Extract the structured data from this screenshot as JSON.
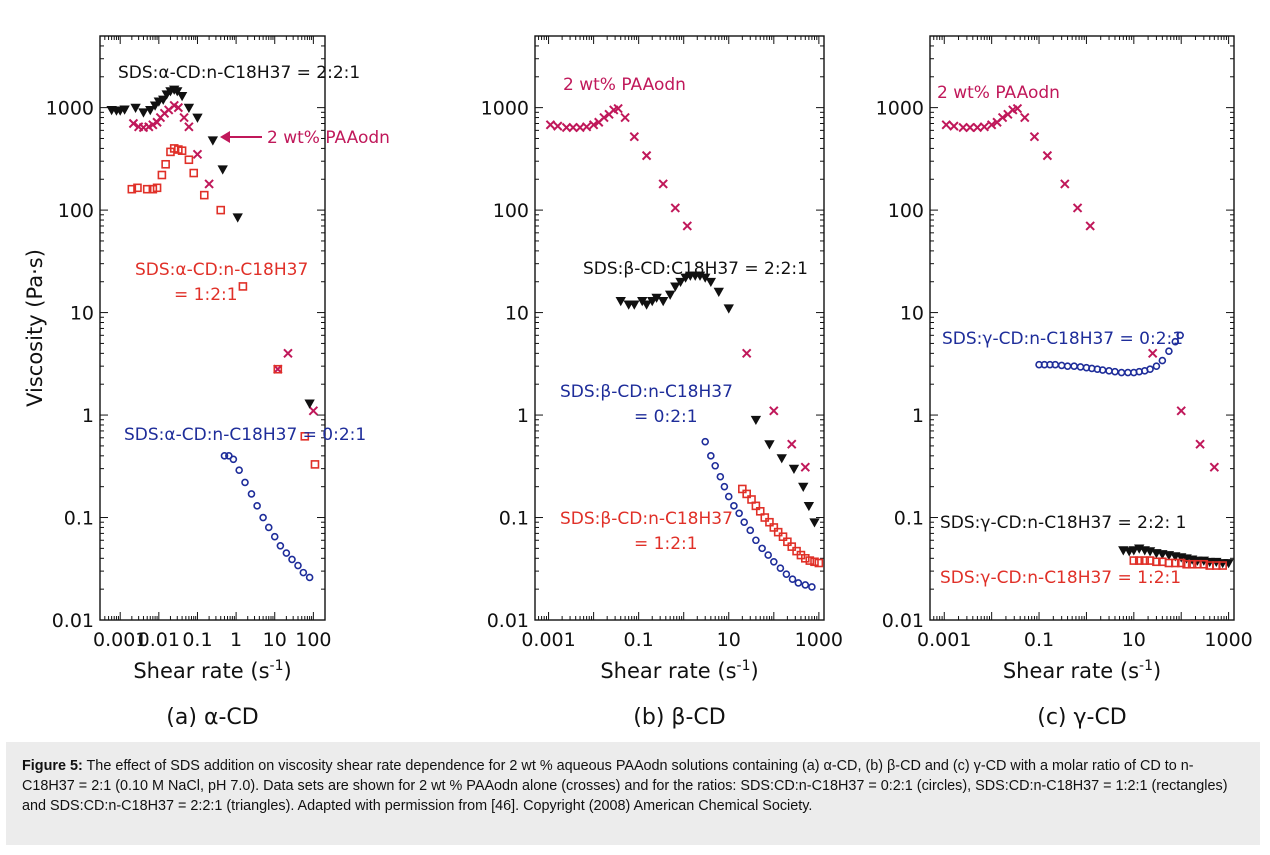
{
  "figure": {
    "y_axis_label": "Viscosity (Pa·s)",
    "x_axis_label": "Shear rate  (s",
    "x_axis_label_sup": "-1",
    "x_axis_label_end": ")"
  },
  "colors": {
    "paaodn": "#c0185a",
    "ratio_121": "#e03028",
    "ratio_021": "#1e2d9a",
    "ratio_221": "#111111",
    "axis": "#111111"
  },
  "chart_data": [
    {
      "type": "scatter",
      "panel_label": "(a) α-CD",
      "xlim": [
        0.0003,
        200
      ],
      "ylim": [
        0.01,
        5000
      ],
      "x_scale": "log",
      "y_scale": "log",
      "x_ticks": [
        "0.001",
        "0.01",
        "0.1",
        "1",
        "10",
        "100"
      ],
      "y_ticks": [
        "0.01",
        "0.1",
        "1",
        "10",
        "100",
        "1000"
      ],
      "annotations": [
        {
          "text": "SDS:α-CD:n-C18H37 = 2:2:1",
          "color": "#111111"
        },
        {
          "text": "2 wt% PAAodn",
          "color": "#c0185a"
        },
        {
          "text": "SDS:α-CD:n-C18H37",
          "color": "#e03028"
        },
        {
          "text": "= 1:2:1",
          "color": "#e03028"
        },
        {
          "text": "SDS:α-CD:n-C18H37 = 0:2:1",
          "color": "#1e2d9a"
        }
      ],
      "series": [
        {
          "marker": "cross",
          "color": "#c0185a",
          "x": [
            0.0022,
            0.003,
            0.004,
            0.0055,
            0.007,
            0.009,
            0.011,
            0.014,
            0.018,
            0.025,
            0.032,
            0.045,
            0.06,
            0.1,
            0.2,
            12,
            22,
            100
          ],
          "y": [
            700,
            650,
            640,
            650,
            680,
            720,
            800,
            880,
            950,
            1050,
            1000,
            800,
            650,
            350,
            180,
            2.8,
            4.0,
            1.1
          ]
        },
        {
          "marker": "square",
          "color": "#e03028",
          "x": [
            0.002,
            0.0028,
            0.005,
            0.007,
            0.009,
            0.012,
            0.015,
            0.02,
            0.025,
            0.032,
            0.04,
            0.06,
            0.08,
            0.15,
            0.4,
            1.5,
            12,
            60,
            110
          ],
          "y": [
            160,
            165,
            160,
            160,
            165,
            220,
            280,
            370,
            400,
            390,
            380,
            310,
            230,
            140,
            100,
            18,
            2.8,
            0.62,
            0.33
          ]
        },
        {
          "marker": "triangle",
          "color": "#111111",
          "x": [
            0.0006,
            0.0008,
            0.001,
            0.0013,
            0.0025,
            0.004,
            0.006,
            0.008,
            0.01,
            0.013,
            0.016,
            0.02,
            0.025,
            0.03,
            0.04,
            0.06,
            0.1,
            0.25,
            0.45,
            1.1,
            80
          ],
          "y": [
            950,
            940,
            940,
            960,
            1000,
            900,
            950,
            1050,
            1150,
            1200,
            1350,
            1450,
            1500,
            1450,
            1300,
            1000,
            800,
            480,
            250,
            85,
            1.3
          ]
        },
        {
          "marker": "circle",
          "color": "#1e2d9a",
          "x": [
            0.5,
            0.65,
            0.85,
            1.2,
            1.7,
            2.5,
            3.5,
            5,
            7,
            10,
            14,
            20,
            28,
            40,
            55,
            80
          ],
          "y": [
            0.4,
            0.4,
            0.37,
            0.29,
            0.22,
            0.17,
            0.13,
            0.1,
            0.08,
            0.065,
            0.053,
            0.045,
            0.039,
            0.034,
            0.029,
            0.026
          ]
        }
      ]
    },
    {
      "type": "scatter",
      "panel_label": "(b) β-CD",
      "xlim": [
        0.0005,
        1300
      ],
      "ylim": [
        0.01,
        5000
      ],
      "x_scale": "log",
      "y_scale": "log",
      "x_ticks": [
        "0.001",
        "0.1",
        "10",
        "1000"
      ],
      "y_ticks": [
        "0.01",
        "0.1",
        "1",
        "10",
        "100",
        "1000"
      ],
      "annotations": [
        {
          "text": "2 wt% PAAodn",
          "color": "#c0185a"
        },
        {
          "text": "SDS:β-CD:C18H37 = 2:2:1",
          "color": "#111111"
        },
        {
          "text": "SDS:β-CD:n-C18H37",
          "color": "#1e2d9a"
        },
        {
          "text": "= 0:2:1",
          "color": "#1e2d9a"
        },
        {
          "text": "SDS:β-CD:n-C18H37",
          "color": "#e03028"
        },
        {
          "text": "= 1:2:1",
          "color": "#e03028"
        }
      ],
      "series": [
        {
          "marker": "cross",
          "color": "#c0185a",
          "x": [
            0.0011,
            0.0016,
            0.0025,
            0.0035,
            0.005,
            0.007,
            0.01,
            0.013,
            0.017,
            0.022,
            0.028,
            0.035,
            0.05,
            0.08,
            0.15,
            0.35,
            0.65,
            1.2,
            25,
            100,
            250,
            500
          ],
          "y": [
            680,
            660,
            640,
            640,
            640,
            650,
            680,
            720,
            800,
            860,
            950,
            980,
            800,
            520,
            340,
            180,
            105,
            70,
            4.0,
            1.1,
            0.52,
            0.31
          ]
        },
        {
          "marker": "triangle",
          "color": "#111111",
          "x": [
            0.04,
            0.06,
            0.08,
            0.12,
            0.15,
            0.2,
            0.25,
            0.35,
            0.5,
            0.65,
            0.85,
            1.1,
            1.4,
            1.8,
            2.3,
            3,
            4,
            6,
            10,
            40,
            80,
            150,
            280,
            450,
            600,
            800
          ],
          "y": [
            13,
            12,
            12,
            13,
            12,
            13,
            14,
            13,
            15,
            18,
            20,
            22,
            23,
            23,
            23,
            22,
            20,
            16,
            11,
            0.9,
            0.52,
            0.38,
            0.3,
            0.2,
            0.13,
            0.09
          ]
        },
        {
          "marker": "circle",
          "color": "#1e2d9a",
          "x": [
            3,
            4,
            5,
            6.5,
            8,
            10,
            13,
            17,
            22,
            30,
            40,
            55,
            75,
            100,
            140,
            190,
            260,
            350,
            500,
            700
          ],
          "y": [
            0.55,
            0.4,
            0.32,
            0.25,
            0.2,
            0.16,
            0.13,
            0.11,
            0.09,
            0.075,
            0.06,
            0.05,
            0.043,
            0.037,
            0.032,
            0.028,
            0.025,
            0.023,
            0.022,
            0.021
          ]
        },
        {
          "marker": "square",
          "color": "#e03028",
          "x": [
            20,
            25,
            32,
            40,
            50,
            63,
            80,
            100,
            125,
            160,
            200,
            250,
            320,
            400,
            500,
            630,
            800,
            1000
          ],
          "y": [
            0.19,
            0.17,
            0.15,
            0.13,
            0.115,
            0.1,
            0.09,
            0.08,
            0.072,
            0.065,
            0.058,
            0.052,
            0.047,
            0.043,
            0.04,
            0.038,
            0.037,
            0.036
          ]
        }
      ]
    },
    {
      "type": "scatter",
      "panel_label": "(c) γ-CD",
      "xlim": [
        0.0005,
        1300
      ],
      "ylim": [
        0.01,
        5000
      ],
      "x_scale": "log",
      "y_scale": "log",
      "x_ticks": [
        "0.001",
        "0.1",
        "10",
        "1000"
      ],
      "y_ticks": [
        "0.01",
        "0.1",
        "1",
        "10",
        "100",
        "1000"
      ],
      "annotations": [
        {
          "text": "2 wt% PAAodn",
          "color": "#c0185a"
        },
        {
          "text": "SDS:γ-CD:n-C18H37 = 0:2:1",
          "color": "#1e2d9a"
        },
        {
          "text": "SDS:γ-CD:n-C18H37 = 2:2: 1",
          "color": "#111111"
        },
        {
          "text": "SDS:γ-CD:n-C18H37 = 1:2:1",
          "color": "#e03028"
        }
      ],
      "series": [
        {
          "marker": "cross",
          "color": "#c0185a",
          "x": [
            0.0011,
            0.0016,
            0.0025,
            0.0035,
            0.005,
            0.007,
            0.01,
            0.013,
            0.017,
            0.022,
            0.028,
            0.035,
            0.05,
            0.08,
            0.15,
            0.35,
            0.65,
            1.2,
            25,
            100,
            250,
            500
          ],
          "y": [
            680,
            660,
            640,
            640,
            640,
            650,
            680,
            720,
            800,
            860,
            950,
            980,
            800,
            520,
            340,
            180,
            105,
            70,
            4.0,
            1.1,
            0.52,
            0.31
          ]
        },
        {
          "marker": "circle",
          "color": "#1e2d9a",
          "x": [
            0.1,
            0.13,
            0.17,
            0.22,
            0.3,
            0.4,
            0.55,
            0.75,
            1,
            1.3,
            1.7,
            2.2,
            3,
            4,
            5.5,
            7.5,
            10,
            13,
            17,
            22,
            30,
            40,
            55,
            75,
            95
          ],
          "y": [
            3.1,
            3.1,
            3.1,
            3.1,
            3.05,
            3.0,
            3.0,
            2.95,
            2.9,
            2.85,
            2.8,
            2.75,
            2.7,
            2.65,
            2.6,
            2.6,
            2.6,
            2.65,
            2.7,
            2.8,
            3.0,
            3.4,
            4.2,
            5.2,
            6.0
          ]
        },
        {
          "marker": "triangle",
          "color": "#111111",
          "x": [
            6,
            8,
            10,
            13,
            17,
            22,
            30,
            40,
            55,
            75,
            100,
            130,
            170,
            220,
            300,
            400,
            550,
            750,
            1000
          ],
          "y": [
            0.048,
            0.047,
            0.048,
            0.05,
            0.048,
            0.047,
            0.045,
            0.044,
            0.043,
            0.042,
            0.041,
            0.04,
            0.039,
            0.038,
            0.038,
            0.037,
            0.037,
            0.036,
            0.036
          ]
        },
        {
          "marker": "square",
          "color": "#e03028",
          "x": [
            10,
            13,
            17,
            22,
            30,
            40,
            55,
            75,
            100,
            130,
            170,
            220,
            300,
            400,
            550,
            750
          ],
          "y": [
            0.038,
            0.038,
            0.038,
            0.038,
            0.037,
            0.037,
            0.036,
            0.036,
            0.036,
            0.035,
            0.035,
            0.035,
            0.035,
            0.034,
            0.034,
            0.034
          ]
        }
      ]
    }
  ],
  "caption": {
    "label": "Figure 5:",
    "text": " The effect of SDS addition on viscosity shear rate dependence for 2 wt % aqueous PAAodn solutions containing (a) α-CD, (b) β-CD and (c) γ-CD with a molar ratio of CD to n-C18H37 = 2:1 (0.10 M NaCl, pH 7.0). Data sets are shown for 2 wt % PAAodn alone (crosses) and for the ratios: SDS:CD:n-C18H37 = 0:2:1 (circles), SDS:CD:n-C18H37 = 1:2:1 (rectangles) and SDS:CD:n-C18H37 = 2:2:1 (triangles). Adapted with permission from [46]. Copyright (2008) American Chemical Society."
  }
}
